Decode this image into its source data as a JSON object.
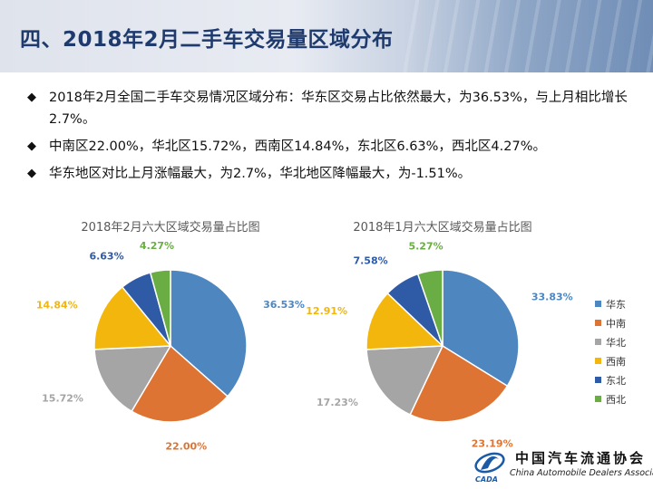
{
  "header": {
    "title": "四、2018年2月二手车交易量区域分布"
  },
  "bullets": [
    {
      "marker": "◆",
      "text": "2018年2月全国二手车交易情况区域分布：华东区交易占比依然最大，为36.53%，与上月相比增长2.7%。"
    },
    {
      "marker": "◆",
      "text": "中南区22.00%，华北区15.72%，西南区14.84%，东北区6.63%，西北区4.27%。"
    },
    {
      "marker": "◆",
      "text": "华东地区对比上月涨幅最大，为2.7%，华北地区降幅最大，为-1.51%。"
    }
  ],
  "chart_data": [
    {
      "type": "pie",
      "title": "2018年2月六大区域交易量占比图",
      "categories": [
        "华东",
        "中南",
        "华北",
        "西南",
        "东北",
        "西北"
      ],
      "values": [
        36.53,
        22.0,
        15.72,
        14.84,
        6.63,
        4.27
      ],
      "labels": [
        "36.53%",
        "22.00%",
        "15.72%",
        "14.84%",
        "6.63%",
        "4.27%"
      ],
      "colors": [
        "#4e86c0",
        "#dd7433",
        "#a5a5a5",
        "#f2b60d",
        "#2f5aa6",
        "#6aad45"
      ]
    },
    {
      "type": "pie",
      "title": "2018年1月六大区域交易量占比图",
      "categories": [
        "华东",
        "中南",
        "华北",
        "西南",
        "东北",
        "西北"
      ],
      "values": [
        33.83,
        23.19,
        17.23,
        12.91,
        7.58,
        5.27
      ],
      "labels": [
        "33.83%",
        "23.19%",
        "17.23%",
        "12.91%",
        "7.58%",
        "5.27%"
      ],
      "colors": [
        "#4e86c0",
        "#dd7433",
        "#a5a5a5",
        "#f2b60d",
        "#2f5aa6",
        "#6aad45"
      ]
    }
  ],
  "legend": {
    "placement": "right",
    "items": [
      {
        "label": "华东",
        "color": "#4e86c0"
      },
      {
        "label": "中南",
        "color": "#dd7433"
      },
      {
        "label": "华北",
        "color": "#a5a5a5"
      },
      {
        "label": "西南",
        "color": "#f2b60d"
      },
      {
        "label": "东北",
        "color": "#2f5aa6"
      },
      {
        "label": "西北",
        "color": "#6aad45"
      }
    ]
  },
  "logo": {
    "name_cn": "中国汽车流通协会",
    "name_en": "China Automobile Dealers Association",
    "abbr": "CADA"
  }
}
